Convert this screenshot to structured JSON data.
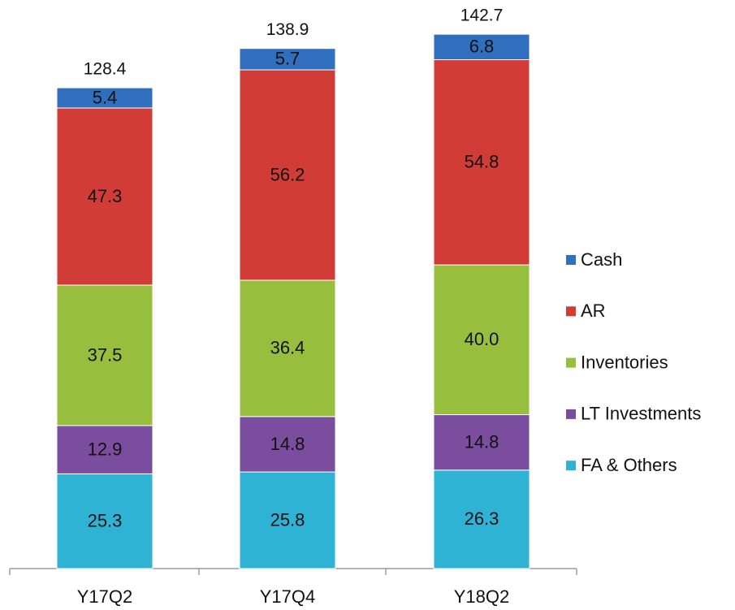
{
  "chart_data": {
    "type": "stacked_bar",
    "categories": [
      "Y17Q2",
      "Y17Q4",
      "Y18Q2"
    ],
    "series": [
      {
        "name": "FA & Others",
        "color": "#2fb3d5",
        "values": [
          25.3,
          25.8,
          26.3
        ]
      },
      {
        "name": "LT Investments",
        "color": "#7b4d9e",
        "values": [
          12.9,
          14.8,
          14.8
        ]
      },
      {
        "name": "Inventories",
        "color": "#97bf3d",
        "values": [
          37.5,
          36.4,
          40.0
        ],
        "value_labels": [
          "37.5",
          "36.4",
          "40.0"
        ]
      },
      {
        "name": "AR",
        "color": "#d23c37",
        "values": [
          47.3,
          56.2,
          54.8
        ]
      },
      {
        "name": "Cash",
        "color": "#2f6fbe",
        "values": [
          5.4,
          5.7,
          6.8
        ]
      }
    ],
    "totals": [
      128.4,
      138.9,
      142.7
    ],
    "legend": "right"
  }
}
